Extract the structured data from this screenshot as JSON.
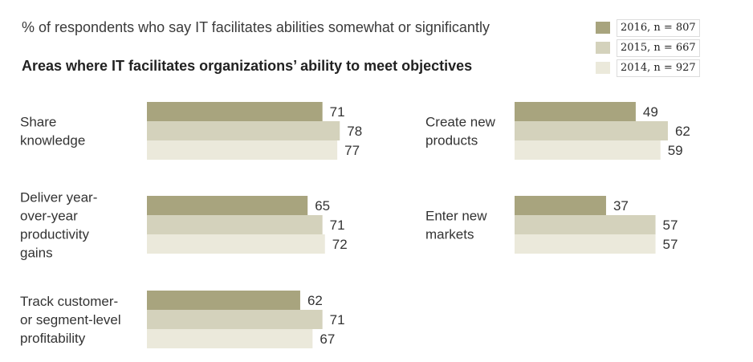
{
  "header": {
    "subtitle": "% of respondents who say IT facilitates abilities somewhat or significantly"
  },
  "chart_data": {
    "type": "bar",
    "orientation": "horizontal",
    "title": "Areas where IT facilitates organizations’ ability to meet objectives",
    "subtitle": "% of respondents who say IT facilitates abilities somewhat or significantly",
    "categories": [
      [
        "Share",
        "knowledge"
      ],
      [
        "Deliver year-",
        "over-year",
        "productivity",
        "gains"
      ],
      [
        "Track customer-",
        "or segment-level",
        "profitability"
      ],
      [
        "Create new",
        "products"
      ],
      [
        "Enter new",
        "markets"
      ]
    ],
    "series": [
      {
        "name": "2016, n = 807",
        "color": "#a8a47e",
        "values": [
          71,
          65,
          62,
          49,
          37
        ]
      },
      {
        "name": "2015, n = 667",
        "color": "#d4d2bc",
        "values": [
          78,
          71,
          71,
          62,
          57
        ]
      },
      {
        "name": "2014, n = 927",
        "color": "#ebe9db",
        "values": [
          77,
          72,
          67,
          59,
          57
        ]
      }
    ],
    "legend_position": "top-right",
    "xlim": [
      0,
      100
    ],
    "grid": false
  }
}
